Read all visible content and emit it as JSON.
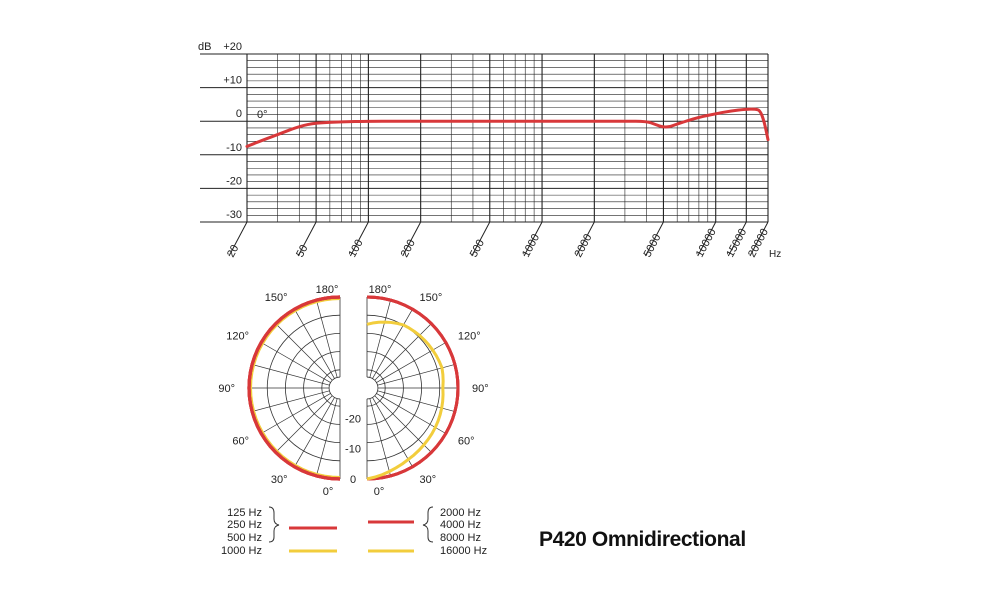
{
  "chart_data": [
    {
      "type": "line",
      "title": "",
      "ylabel": "dB",
      "xlabel": "Hz",
      "xscale": "log",
      "xlim": [
        20,
        20000
      ],
      "ylim": [
        -30,
        20
      ],
      "grid": true,
      "x_ticks": [
        "20",
        "50",
        "100",
        "200",
        "500",
        "1000",
        "2000",
        "5000",
        "10000",
        "15000",
        "20000"
      ],
      "y_ticks": [
        "+20",
        "+10",
        "0",
        "-10",
        "-20",
        "-30"
      ],
      "annotation": "0°",
      "series": [
        {
          "color": "#d8383a",
          "x": [
            20,
            25,
            30,
            40,
            50,
            70,
            100,
            200,
            500,
            1000,
            2000,
            3000,
            4000,
            4500,
            5000,
            5500,
            6000,
            8000,
            10000,
            12000,
            15000,
            17000,
            18000,
            19000,
            20000
          ],
          "y": [
            -7.5,
            -5.5,
            -4,
            -1.5,
            -0.5,
            -0.2,
            0,
            0,
            0,
            0,
            0,
            0,
            0,
            -1,
            -1.8,
            -1.6,
            -0.8,
            1.2,
            2.2,
            3,
            3.6,
            3.6,
            3.2,
            0,
            -5.5
          ]
        }
      ]
    },
    {
      "type": "polar",
      "angle_labels": [
        "180°",
        "150°",
        "120°",
        "90°",
        "60°",
        "30°",
        "0°"
      ],
      "radial_labels": [
        "-20",
        "-10",
        "0"
      ],
      "series": [
        {
          "name": "125 Hz",
          "group": "left",
          "color": "#d8383a",
          "level_db": 0
        },
        {
          "name": "250 Hz",
          "group": "left",
          "color": "#d8383a",
          "level_db": 0
        },
        {
          "name": "500 Hz",
          "group": "left",
          "color": "#d8383a",
          "level_db": 0
        },
        {
          "name": "1000 Hz",
          "group": "left",
          "color": "#f2cd3c",
          "level_db": -0.5
        },
        {
          "name": "2000 Hz",
          "group": "right",
          "color": "#d8383a",
          "level_db": 0
        },
        {
          "name": "4000 Hz",
          "group": "right",
          "color": "#d8383a",
          "level_db": 0
        },
        {
          "name": "8000 Hz",
          "group": "right",
          "color": "#d8383a",
          "level_db": 0
        },
        {
          "name": "16000 Hz",
          "group": "right",
          "color": "#f2cd3c",
          "angles": [
            0,
            10,
            20,
            30,
            45,
            60,
            75,
            90,
            105,
            120,
            135,
            150,
            160,
            170,
            180
          ],
          "level_db": [
            0,
            -1,
            -2,
            -2.8,
            -3.5,
            -4,
            -4.5,
            -5,
            -4.4,
            -5,
            -5.5,
            -6,
            -7,
            -8,
            -9
          ]
        }
      ],
      "legend": {
        "left": [
          "125 Hz",
          "250 Hz",
          "500 Hz",
          "1000 Hz"
        ],
        "right": [
          "2000 Hz",
          "4000 Hz",
          "8000 Hz",
          "16000 Hz"
        ]
      }
    }
  ],
  "model": {
    "name": "P420",
    "pattern": "Omnidirectional"
  }
}
